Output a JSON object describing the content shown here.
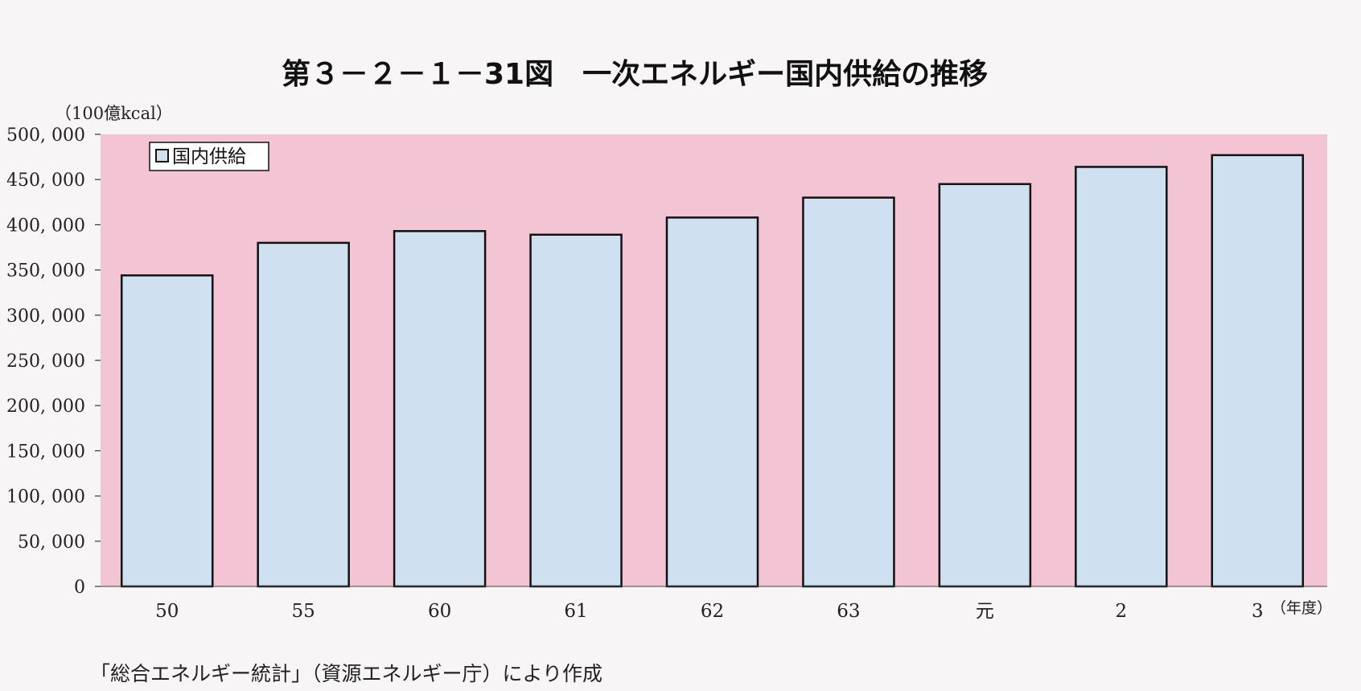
{
  "chart_data": {
    "type": "bar",
    "title": "第３－２－１－31図　一次エネルギー国内供給の推移",
    "ylabel": "（100億kcal）",
    "xlabel": "（年度）",
    "categories": [
      "50",
      "55",
      "60",
      "61",
      "62",
      "63",
      "元",
      "2",
      "3"
    ],
    "series": [
      {
        "name": "国内供給",
        "values": [
          344000,
          380000,
          393000,
          389000,
          408000,
          430000,
          445000,
          464000,
          477000
        ]
      }
    ],
    "ylim": [
      0,
      500000
    ],
    "yticks": [
      0,
      50000,
      100000,
      150000,
      200000,
      250000,
      300000,
      350000,
      400000,
      450000,
      500000
    ],
    "ytick_labels": [
      "0",
      "50, 000",
      "100, 000",
      "150, 000",
      "200, 000",
      "250, 000",
      "300, 000",
      "350, 000",
      "400, 000",
      "450, 000",
      "500, 000"
    ],
    "grid": false,
    "legend_position": "top-left",
    "colors": {
      "plot_background": "#f2c4d4",
      "bar_fill": "#cfe1f1",
      "bar_stroke": "#111111"
    }
  },
  "source_note": "「総合エネルギー統計」（資源エネルギー庁）により作成"
}
